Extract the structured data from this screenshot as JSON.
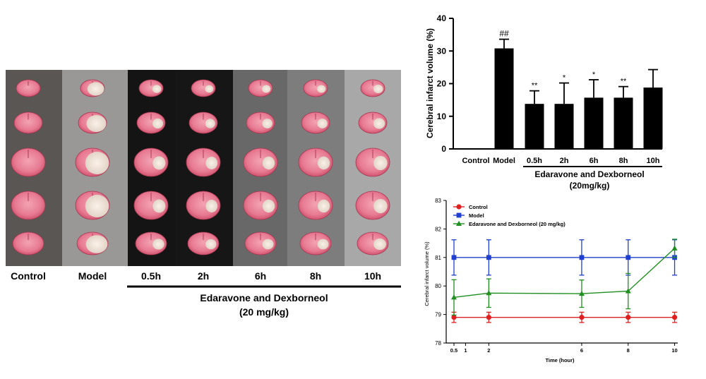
{
  "brain_panel": {
    "columns": [
      "Control",
      "Model",
      "0.5h",
      "2h",
      "6h",
      "8h",
      "10h"
    ],
    "treatment_label": "Edaravone and Dexborneol",
    "dose_label": "(20 mg/kg)"
  },
  "chart_data": [
    {
      "type": "bar",
      "ylabel": "Cerebral infarct volume (%)",
      "categories": [
        "Control",
        "Model",
        "0.5h",
        "2h",
        "6h",
        "8h",
        "10h"
      ],
      "values": [
        0,
        30.8,
        13.8,
        13.8,
        15.7,
        15.7,
        18.8
      ],
      "errors": [
        0,
        2.8,
        4.0,
        6.4,
        5.5,
        3.4,
        5.5
      ],
      "significance": [
        "",
        "##",
        "**",
        "*",
        "*",
        "**",
        ""
      ],
      "ylim": [
        0,
        40
      ],
      "yticks": [
        "0",
        "10",
        "20",
        "30",
        "40"
      ],
      "group_label": "Edaravone and Dexborneol",
      "group_dose": "(20mg/kg)"
    },
    {
      "type": "line",
      "xlabel": "Time (hour)",
      "ylabel": "Cerebral infarct volume (%)",
      "x": [
        0.5,
        2,
        6,
        8,
        10
      ],
      "xticks": [
        "0.5",
        "1",
        "2",
        "6",
        "8",
        "10"
      ],
      "xtick_values": [
        0.5,
        1,
        2,
        6,
        8,
        10
      ],
      "ylim": [
        78,
        83
      ],
      "yticks": [
        "78",
        "79",
        "80",
        "81",
        "82",
        "83"
      ],
      "series": [
        {
          "name": "Control",
          "color": "#e02020",
          "marker": "circle",
          "values": [
            78.9,
            78.9,
            78.9,
            78.9,
            78.9
          ],
          "errors": [
            0.18,
            0.18,
            0.18,
            0.18,
            0.18
          ]
        },
        {
          "name": "Model",
          "color": "#1f3fd0",
          "marker": "square",
          "values": [
            81.0,
            81.0,
            81.0,
            81.0,
            81.0
          ],
          "errors": [
            0.62,
            0.62,
            0.62,
            0.62,
            0.62
          ]
        },
        {
          "name": "Edaravone and Dexborneol (20 mg/kg)",
          "color": "#1f8f1f",
          "marker": "triangle",
          "values": [
            79.6,
            79.75,
            79.73,
            79.82,
            81.32
          ],
          "errors": [
            0.62,
            0.5,
            0.48,
            0.62,
            0.32
          ]
        }
      ]
    }
  ]
}
